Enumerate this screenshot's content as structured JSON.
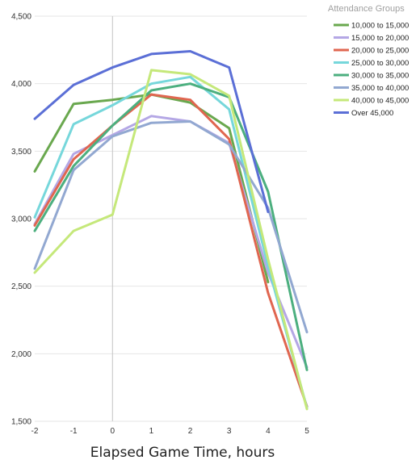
{
  "chart_data": {
    "type": "line",
    "title": "",
    "xlabel": "Elapsed Game Time, hours",
    "ylabel": "",
    "x": [
      -2,
      -1,
      0,
      1,
      2,
      3,
      4,
      5
    ],
    "xlim": [
      -2,
      5
    ],
    "ylim": [
      1500,
      4500
    ],
    "x_ticks": [
      "-2",
      "-1",
      "0",
      "1",
      "2",
      "3",
      "4",
      "5"
    ],
    "y_ticks": [
      "1,500",
      "2,000",
      "2,500",
      "3,000",
      "3,500",
      "4,000",
      "4,500"
    ],
    "y_tick_values": [
      1500,
      2000,
      2500,
      3000,
      3500,
      4000,
      4500
    ],
    "grid": "horizontal",
    "vertical_reference_line_at_x": 0,
    "legend_title": "Attendance Groups",
    "legend_position": "top-right",
    "series": [
      {
        "name": "10,000 to 15,000",
        "color": "#6aa84f",
        "values": [
          3350,
          3850,
          3880,
          3920,
          3860,
          3670,
          2530,
          null
        ]
      },
      {
        "name": "15,000 to 20,000",
        "color": "#b4a7e5",
        "values": [
          2960,
          3480,
          3620,
          3760,
          3720,
          3560,
          2600,
          1900
        ]
      },
      {
        "name": "20,000 to 25,000",
        "color": "#e06650",
        "values": [
          2950,
          3440,
          3690,
          3920,
          3880,
          3590,
          2450,
          1610
        ]
      },
      {
        "name": "25,000 to 30,000",
        "color": "#76d7db",
        "values": [
          3010,
          3700,
          3840,
          4000,
          4050,
          3810,
          2650,
          1600
        ]
      },
      {
        "name": "30,000 to 35,000",
        "color": "#4caf7f",
        "values": [
          2910,
          3390,
          3690,
          3950,
          4000,
          3900,
          3200,
          1880
        ]
      },
      {
        "name": "35,000 to 40,000",
        "color": "#92a8d1",
        "values": [
          2630,
          3360,
          3610,
          3710,
          3720,
          3550,
          3080,
          2160
        ]
      },
      {
        "name": "40,000 to 45,000",
        "color": "#c5e87a",
        "values": [
          2600,
          2910,
          3030,
          4100,
          4070,
          3910,
          2700,
          1590
        ]
      },
      {
        "name": "Over 45,000",
        "color": "#5b6fd6",
        "values": [
          3740,
          3990,
          4120,
          4220,
          4240,
          4120,
          3050,
          null
        ]
      }
    ]
  }
}
